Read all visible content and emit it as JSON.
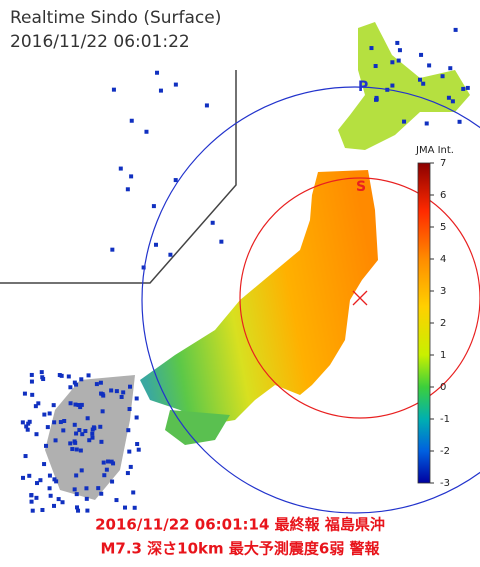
{
  "header": {
    "title": "Realtime Sindo (Surface)",
    "time": "2016/11/22 06:01:22"
  },
  "waves": {
    "p_label": "P",
    "s_label": "S"
  },
  "colorbar": {
    "label": "JMA Int.",
    "range": [
      -3,
      7
    ],
    "ticks": [
      7,
      6,
      5,
      4,
      3,
      2,
      1,
      0,
      -1,
      -2,
      -3
    ]
  },
  "alert": {
    "line1": "2016/11/22 06:01:14 最終報 福島県沖",
    "line2": "M7.3 深さ10km 最大予測震度6弱 警報"
  }
}
